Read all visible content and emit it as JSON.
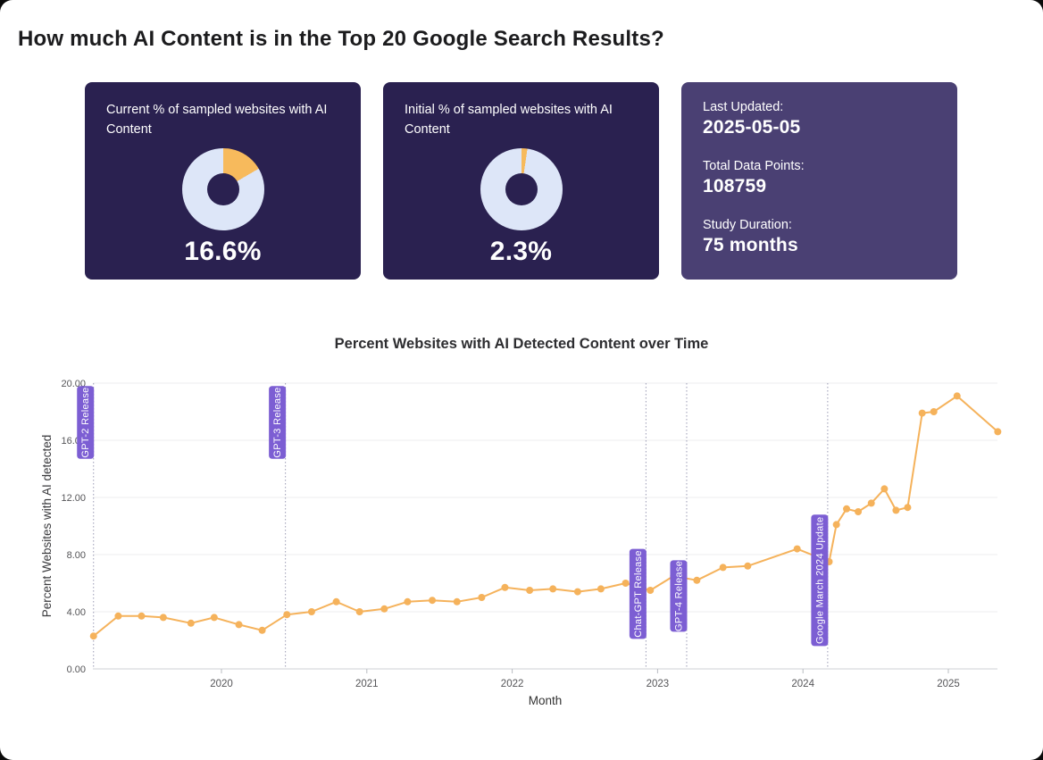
{
  "page": {
    "title": "How much AI Content is in the Top 20 Google Search Results?"
  },
  "cards": {
    "current": {
      "title": "Current % of sampled websites with AI Content",
      "value": "16.6%",
      "percent": 16.6
    },
    "initial": {
      "title": "Initial % of sampled websites with AI Content",
      "value": "2.3%",
      "percent": 2.3
    },
    "stats": {
      "items": [
        {
          "label": "Last Updated:",
          "value": "2025-05-05"
        },
        {
          "label": "Total Data Points:",
          "value": "108759"
        },
        {
          "label": "Study Duration:",
          "value": "75 months"
        }
      ]
    }
  },
  "colors": {
    "kpi_card_bg": "#2A2150",
    "stats_card_bg": "#4A4073",
    "donut_slice": "#F7BA5C",
    "donut_track": "#DDE6F8",
    "annotation_bg": "#7C5ED3",
    "line": "#F5B25B",
    "grid": "#ECEDEF",
    "axis": "#CFD2D6",
    "tick_text": "#555558"
  },
  "chart_data": {
    "type": "line",
    "title": "Percent Websites with AI Detected Content over Time",
    "xlabel": "Month",
    "ylabel": "Percent Websites with AI detected",
    "ylim": [
      0,
      20
    ],
    "xlim": [
      2019.04,
      2025.42
    ],
    "grid": true,
    "ytick_values": [
      0,
      4,
      8,
      12,
      16,
      20
    ],
    "ytick_labels": [
      "0.00",
      "4.00",
      "8.00",
      "12.00",
      "16.00",
      "20.00"
    ],
    "xtick_values": [
      2020,
      2021,
      2022,
      2023,
      2024,
      2025
    ],
    "xtick_labels": [
      "2020",
      "2021",
      "2022",
      "2023",
      "2024",
      "2025"
    ],
    "series": [
      {
        "name": "Percent Websites with AI detected",
        "points": [
          [
            2019.12,
            2.3
          ],
          [
            2019.29,
            3.7
          ],
          [
            2019.45,
            3.7
          ],
          [
            2019.6,
            3.6
          ],
          [
            2019.79,
            3.2
          ],
          [
            2019.95,
            3.6
          ],
          [
            2020.12,
            3.1
          ],
          [
            2020.28,
            2.7
          ],
          [
            2020.45,
            3.8
          ],
          [
            2020.62,
            4.0
          ],
          [
            2020.79,
            4.7
          ],
          [
            2020.95,
            4.0
          ],
          [
            2021.12,
            4.2
          ],
          [
            2021.28,
            4.7
          ],
          [
            2021.45,
            4.8
          ],
          [
            2021.62,
            4.7
          ],
          [
            2021.79,
            5.0
          ],
          [
            2021.95,
            5.7
          ],
          [
            2022.12,
            5.5
          ],
          [
            2022.28,
            5.6
          ],
          [
            2022.45,
            5.4
          ],
          [
            2022.61,
            5.6
          ],
          [
            2022.78,
            6.0
          ],
          [
            2022.95,
            5.5
          ],
          [
            2023.11,
            6.5
          ],
          [
            2023.27,
            6.2
          ],
          [
            2023.45,
            7.1
          ],
          [
            2023.62,
            7.2
          ],
          [
            2023.96,
            8.4
          ],
          [
            2024.18,
            7.5
          ],
          [
            2024.23,
            10.1
          ],
          [
            2024.3,
            11.2
          ],
          [
            2024.38,
            11.0
          ],
          [
            2024.47,
            11.6
          ],
          [
            2024.56,
            12.6
          ],
          [
            2024.64,
            11.1
          ],
          [
            2024.72,
            11.3
          ],
          [
            2024.82,
            17.9
          ],
          [
            2024.9,
            18.0
          ],
          [
            2025.06,
            19.1
          ],
          [
            2025.34,
            16.6
          ]
        ]
      }
    ],
    "annotations": [
      {
        "label": "GPT-2 Release",
        "x": 2019.12,
        "label_top": 19.8,
        "label_bottom": 14.7
      },
      {
        "label": "GPT-3 Release",
        "x": 2020.44,
        "label_top": 19.8,
        "label_bottom": 14.7
      },
      {
        "label": "Chat-GPT Release",
        "x": 2022.92,
        "label_top": 8.4,
        "label_bottom": 2.1
      },
      {
        "label": "GPT-4 Release",
        "x": 2023.2,
        "label_top": 7.6,
        "label_bottom": 2.6
      },
      {
        "label": "Google March 2024 Update",
        "x": 2024.17,
        "label_top": 10.8,
        "label_bottom": 1.6
      }
    ]
  }
}
